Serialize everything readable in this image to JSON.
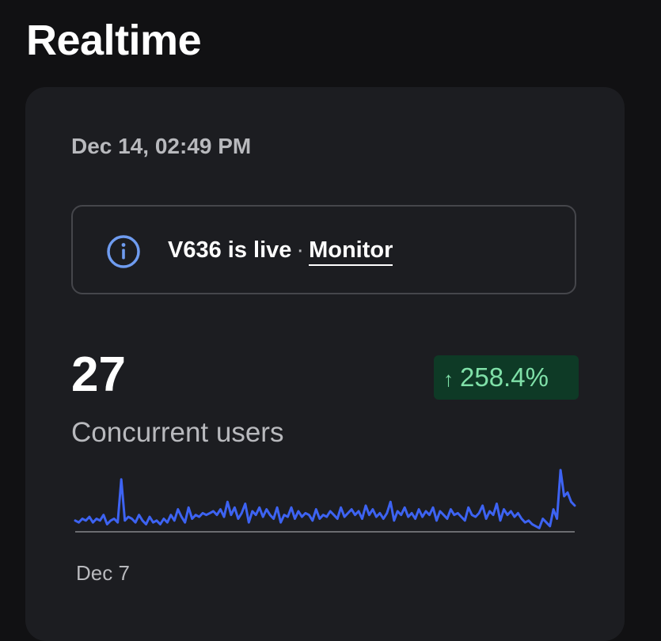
{
  "page": {
    "title": "Realtime"
  },
  "card": {
    "timestamp": "Dec 14, 02:49 PM",
    "banner": {
      "icon": "info-icon",
      "text": "V636 is live",
      "separator": "·",
      "link_label": "Monitor"
    },
    "metric": {
      "value": "27",
      "label": "Concurrent users",
      "change": "258.4%",
      "change_direction": "up",
      "change_icon": "arrow-up-icon"
    },
    "x_axis_start": "Dec 7"
  },
  "colors": {
    "background": "#111113",
    "card": "#1c1d21",
    "line": "#3d63f2",
    "badge_bg": "#0e3a26",
    "badge_text": "#7fe0a8",
    "muted_text": "#b8b9bd",
    "info_icon": "#6f9cf0"
  },
  "chart_data": {
    "type": "line",
    "title": "",
    "xlabel": "",
    "ylabel": "",
    "x_start_label": "Dec 7",
    "values": [
      6,
      5,
      7,
      6,
      8,
      5,
      7,
      6,
      9,
      4,
      6,
      7,
      5,
      28,
      6,
      8,
      7,
      5,
      9,
      6,
      4,
      8,
      5,
      6,
      4,
      7,
      5,
      9,
      6,
      12,
      8,
      5,
      13,
      7,
      9,
      8,
      10,
      9,
      10,
      11,
      9,
      12,
      8,
      16,
      9,
      13,
      7,
      10,
      15,
      5,
      11,
      9,
      13,
      8,
      12,
      9,
      7,
      13,
      5,
      9,
      8,
      13,
      7,
      11,
      8,
      10,
      9,
      6,
      12,
      7,
      9,
      8,
      11,
      9,
      7,
      13,
      8,
      10,
      12,
      9,
      11,
      7,
      14,
      9,
      12,
      8,
      10,
      7,
      10,
      16,
      6,
      11,
      9,
      13,
      8,
      10,
      7,
      12,
      8,
      11,
      9,
      13,
      6,
      11,
      9,
      7,
      12,
      9,
      10,
      8,
      6,
      13,
      9,
      8,
      10,
      14,
      7,
      11,
      9,
      15,
      6,
      12,
      9,
      11,
      8,
      10,
      7,
      5,
      6,
      4,
      3,
      2,
      7,
      5,
      3,
      12,
      7,
      33,
      19,
      21,
      16,
      14
    ]
  }
}
